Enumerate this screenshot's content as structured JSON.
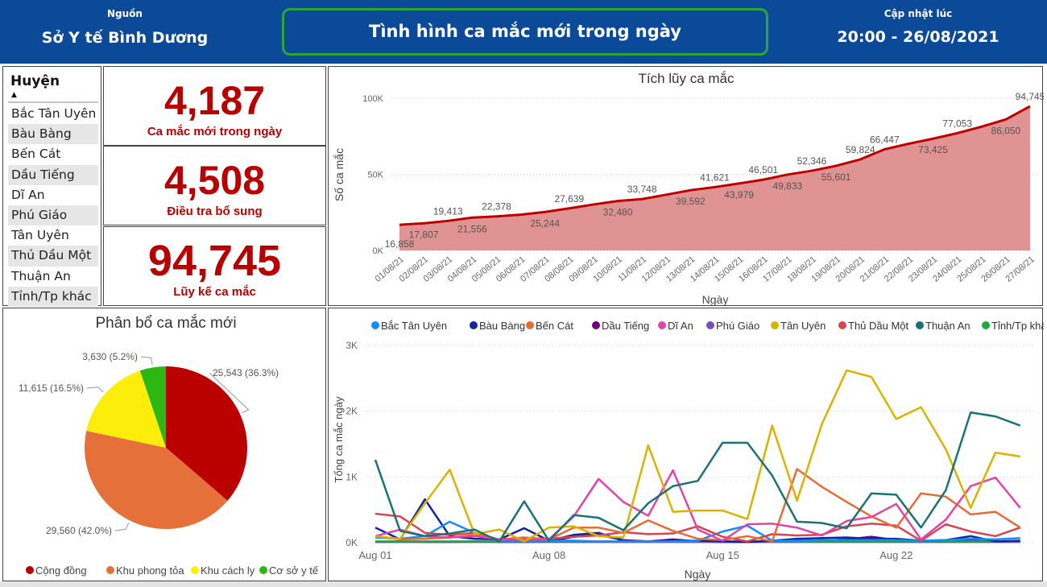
{
  "header": {
    "source_label": "Nguồn",
    "source_value": "Sở Y tế Bình Dương",
    "title": "Tình hình ca mắc mới trong ngày",
    "updated_label": "Cập nhật lúc",
    "updated_value": "20:00 - 26/08/2021",
    "color": "#0b4a98",
    "title_border_color": "#2ea33a"
  },
  "slicer": {
    "title": "Huyện",
    "sort_icon": "triangle-up-icon",
    "items": [
      "Bắc Tân Uyên",
      "Bàu Bàng",
      "Bến Cát",
      "Dầu Tiếng",
      "Dĩ An",
      "Phú Giáo",
      "Tân Uyên",
      "Thủ Dầu Một",
      "Thuận An",
      "Tỉnh/Tp khác"
    ]
  },
  "kpis": [
    {
      "value": "4,187",
      "label": "Ca mắc mới trong ngày"
    },
    {
      "value": "4,508",
      "label": "Điều tra bổ sung"
    },
    {
      "value": "94,745",
      "label": "Lũy kế ca mắc"
    }
  ],
  "kpi_color": "#b80000",
  "chart_data": [
    {
      "type": "area",
      "title": "Tích lũy ca mắc",
      "xlabel": "Ngày",
      "ylabel": "Số ca mắc",
      "ylim": [
        0,
        100000
      ],
      "yticks": [
        "0K",
        "50K",
        "100K"
      ],
      "grid": true,
      "color": "#c00000",
      "fill": "#e09393",
      "categories": [
        "01/08/21",
        "02/08/21",
        "03/08/21",
        "04/08/21",
        "05/08/21",
        "06/08/21",
        "07/08/21",
        "08/08/21",
        "09/08/21",
        "10/08/21",
        "11/08/21",
        "12/08/21",
        "13/08/21",
        "14/08/21",
        "15/08/21",
        "16/08/21",
        "17/08/21",
        "18/08/21",
        "19/08/21",
        "20/08/21",
        "21/08/21",
        "22/08/21",
        "23/08/21",
        "24/08/21",
        "25/08/21",
        "26/08/21",
        "27/08/21"
      ],
      "values": [
        16858,
        17807,
        19413,
        21556,
        22378,
        23500,
        25244,
        27639,
        30200,
        32480,
        33748,
        36600,
        39592,
        41621,
        43979,
        46501,
        49833,
        52346,
        55601,
        59824,
        66447,
        70100,
        73425,
        77053,
        81300,
        86050,
        94745
      ],
      "data_labels": [
        "16,858",
        "17,807",
        "19,413",
        "21,556",
        "22,378",
        null,
        "25,244",
        "27,639",
        null,
        "32,480",
        "33,748",
        null,
        "39,592",
        "41,621",
        "43,979",
        "46,501",
        "49,833",
        "52,346",
        "55,601",
        "59,824",
        "66,447",
        null,
        "73,425",
        "77,053",
        null,
        "86,050",
        "94,745"
      ]
    },
    {
      "type": "pie",
      "title": "Phân bổ ca mắc mới",
      "legend": "bottom",
      "slices": [
        {
          "name": "Cộng đồng",
          "value": 25543,
          "label": "25,543 (36.3%)",
          "color": "#bb0000"
        },
        {
          "name": "Khu phong tỏa",
          "value": 29560,
          "label": "29,560 (42.0%)",
          "color": "#e6703a"
        },
        {
          "name": "Khu cách ly",
          "value": 11615,
          "label": "11,615 (16.5%)",
          "color": "#fcee0a"
        },
        {
          "name": "Cơ sở y tế",
          "value": 3630,
          "label": "3,630 (5.2%)",
          "color": "#2db614"
        }
      ]
    },
    {
      "type": "line",
      "xlabel": "Ngày",
      "ylabel": "Tổng ca mắc ngày",
      "ylim": [
        0,
        3000
      ],
      "yticks": [
        "0K",
        "1K",
        "2K",
        "3K"
      ],
      "xticks": [
        "Aug 01",
        "Aug 08",
        "Aug 15",
        "Aug 22"
      ],
      "x_range": [
        "Aug 01",
        "Aug 27"
      ],
      "grid": true,
      "legend": "top",
      "series": [
        {
          "name": "Bắc Tân Uyên",
          "color": "#118dff",
          "values": [
            80,
            60,
            100,
            320,
            150,
            30,
            30,
            30,
            30,
            20,
            20,
            20,
            20,
            30,
            170,
            260,
            30,
            30,
            40,
            40,
            40,
            40,
            30,
            40,
            60,
            50,
            70
          ]
        },
        {
          "name": "Bàu Bàng",
          "color": "#12239e",
          "values": [
            230,
            50,
            660,
            100,
            60,
            50,
            220,
            30,
            120,
            150,
            30,
            20,
            30,
            30,
            20,
            10,
            30,
            60,
            70,
            80,
            60,
            60,
            30,
            40,
            100,
            20,
            30
          ]
        },
        {
          "name": "Bến Cát",
          "color": "#e66c37",
          "values": [
            100,
            50,
            60,
            80,
            120,
            50,
            80,
            50,
            230,
            230,
            150,
            340,
            180,
            60,
            40,
            100,
            20,
            1120,
            850,
            620,
            400,
            230,
            750,
            700,
            430,
            470,
            230
          ]
        },
        {
          "name": "Dầu Tiếng",
          "color": "#6b007b",
          "values": [
            10,
            20,
            10,
            10,
            20,
            10,
            10,
            20,
            90,
            120,
            40,
            20,
            50,
            20,
            10,
            10,
            20,
            40,
            30,
            50,
            90,
            40,
            20,
            20,
            30,
            20,
            20
          ]
        },
        {
          "name": "Dĩ An",
          "color": "#e044a7",
          "values": [
            100,
            200,
            100,
            80,
            100,
            50,
            50,
            50,
            400,
            970,
            620,
            410,
            1100,
            200,
            30,
            280,
            290,
            230,
            110,
            330,
            390,
            590,
            50,
            350,
            860,
            990,
            530
          ]
        },
        {
          "name": "Phú Giáo",
          "color": "#744ec2",
          "values": [
            10,
            10,
            10,
            10,
            10,
            10,
            10,
            10,
            10,
            10,
            10,
            10,
            10,
            10,
            10,
            10,
            10,
            10,
            10,
            10,
            10,
            10,
            10,
            10,
            10,
            10,
            10
          ]
        },
        {
          "name": "Tân Uyên",
          "color": "#d9b300",
          "values": [
            100,
            60,
            600,
            1110,
            130,
            200,
            20,
            230,
            250,
            100,
            80,
            1480,
            470,
            490,
            490,
            360,
            1780,
            640,
            1800,
            2620,
            2520,
            1880,
            2060,
            1420,
            530,
            1370,
            1310
          ]
        },
        {
          "name": "Thủ Dầu Một",
          "color": "#d64550",
          "values": [
            440,
            400,
            150,
            120,
            150,
            50,
            70,
            60,
            90,
            110,
            160,
            130,
            140,
            250,
            90,
            20,
            130,
            110,
            120,
            250,
            290,
            260,
            30,
            280,
            170,
            100,
            230
          ]
        },
        {
          "name": "Thuận An",
          "color": "#197278",
          "values": [
            1260,
            180,
            100,
            140,
            200,
            20,
            630,
            30,
            420,
            380,
            190,
            600,
            860,
            940,
            1520,
            1520,
            1020,
            320,
            300,
            220,
            750,
            730,
            230,
            800,
            1980,
            1920,
            1780
          ]
        },
        {
          "name": "Tỉnh/Tp khác",
          "color": "#1aab40",
          "values": [
            20,
            20,
            20,
            20,
            20,
            20,
            20,
            20,
            20,
            20,
            20,
            20,
            20,
            20,
            20,
            20,
            20,
            20,
            20,
            20,
            20,
            20,
            20,
            20,
            20,
            20,
            20
          ]
        }
      ]
    }
  ]
}
